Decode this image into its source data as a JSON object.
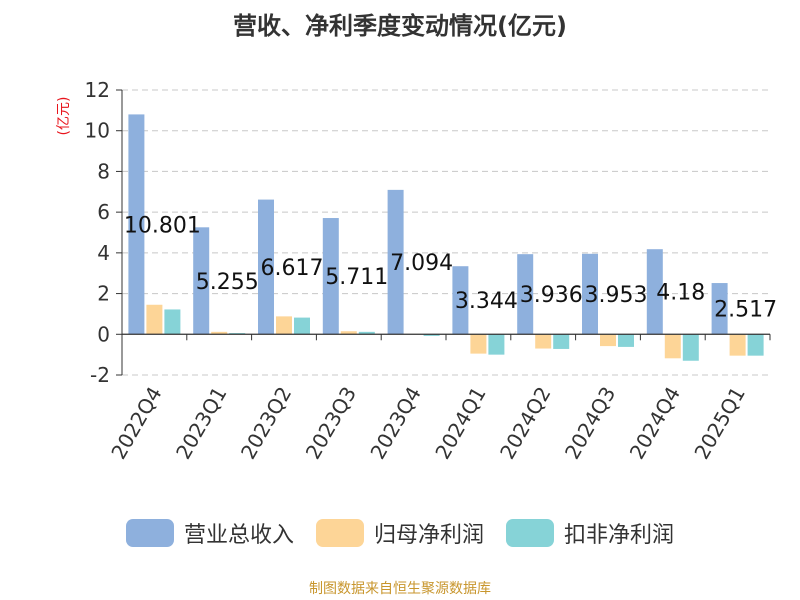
{
  "chart_data": {
    "type": "bar",
    "title": "营收、净利季度变动情况(亿元)",
    "ylabel": "(亿元)",
    "ylim": [
      -2,
      12
    ],
    "yticks": [
      -2,
      0,
      2,
      4,
      6,
      8,
      10,
      12
    ],
    "grid": true,
    "legend_position": "bottom",
    "categories": [
      "2022Q4",
      "2023Q1",
      "2023Q2",
      "2023Q3",
      "2023Q4",
      "2024Q1",
      "2024Q2",
      "2024Q3",
      "2024Q4",
      "2025Q1"
    ],
    "series": [
      {
        "name": "营业总收入",
        "color": "#8eb0dd",
        "values": [
          10.801,
          5.255,
          6.617,
          5.711,
          7.094,
          3.344,
          3.936,
          3.953,
          4.18,
          2.517
        ],
        "data_labels": [
          "10.801",
          "5.255",
          "6.617",
          "5.711",
          "7.094",
          "3.344",
          "3.936",
          "3.953",
          "4.18",
          "2.517"
        ]
      },
      {
        "name": "归母净利润",
        "color": "#fdd597",
        "values": [
          1.45,
          0.12,
          0.88,
          0.15,
          0.02,
          -0.95,
          -0.7,
          -0.58,
          -1.18,
          -1.05
        ]
      },
      {
        "name": "扣非净利润",
        "color": "#86d3d7",
        "values": [
          1.22,
          0.06,
          0.82,
          0.12,
          -0.08,
          -1.0,
          -0.72,
          -0.62,
          -1.3,
          -1.05
        ]
      }
    ]
  },
  "source_note": "制图数据来自恒生聚源数据库"
}
